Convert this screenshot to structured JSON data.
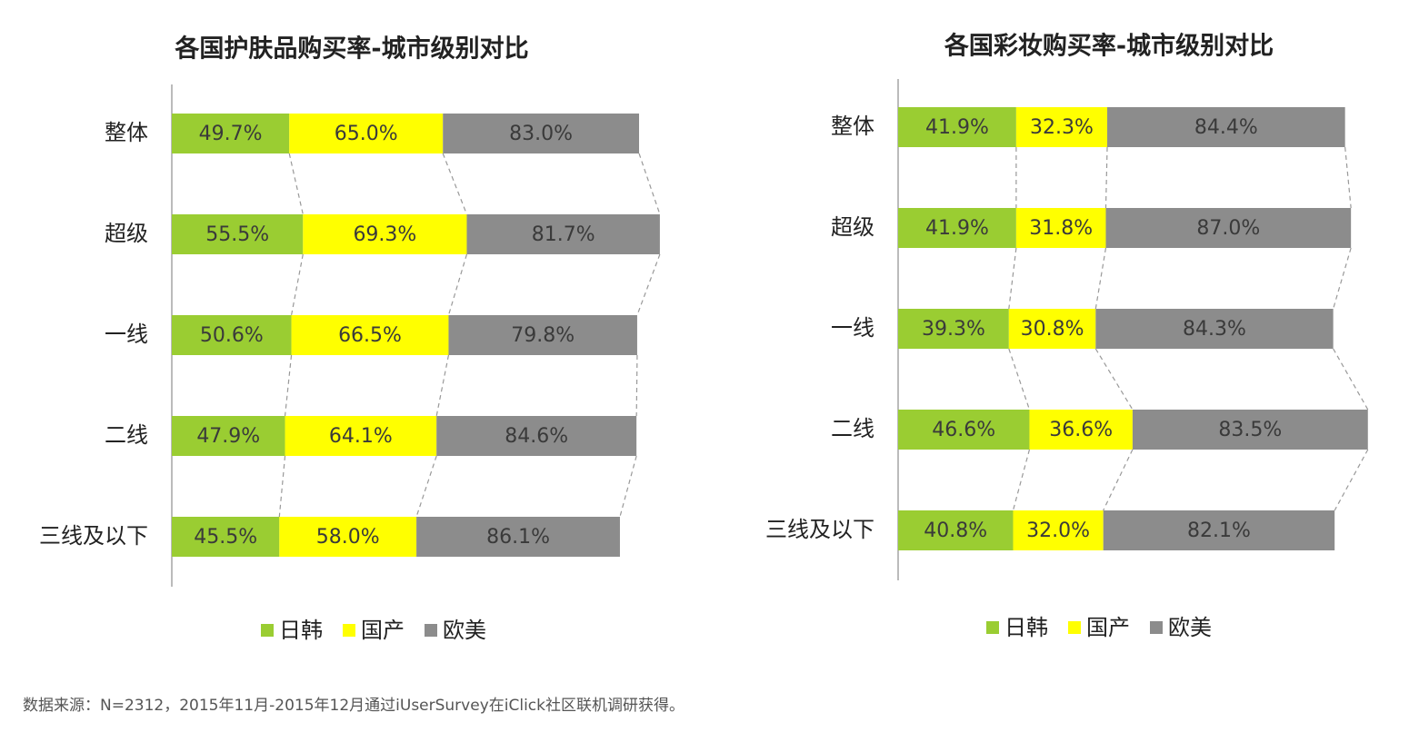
{
  "chart_data": [
    {
      "type": "bar",
      "orientation": "horizontal",
      "stacked": true,
      "title": "各国护肤品购买率-城市级别对比",
      "categories": [
        "整体",
        "超级",
        "一线",
        "二线",
        "三线及以下"
      ],
      "series": [
        {
          "name": "日韩",
          "values": [
            49.7,
            55.5,
            50.6,
            47.9,
            45.5
          ],
          "labels": [
            "49.7%",
            "55.5%",
            "50.6%",
            "47.9%",
            "45.5%"
          ]
        },
        {
          "name": "国产",
          "values": [
            65.0,
            69.3,
            66.5,
            64.1,
            58.0
          ],
          "labels": [
            "65.0%",
            "69.3%",
            "66.5%",
            "64.1%",
            "58.0%"
          ]
        },
        {
          "name": "欧美",
          "values": [
            83.0,
            81.7,
            79.8,
            84.6,
            86.1
          ],
          "labels": [
            "83.0%",
            "81.7%",
            "79.8%",
            "84.6%",
            "86.1%"
          ]
        }
      ],
      "legend": "bottom",
      "xlabel": "",
      "ylabel": ""
    },
    {
      "type": "bar",
      "orientation": "horizontal",
      "stacked": true,
      "title": "各国彩妆购买率-城市级别对比",
      "categories": [
        "整体",
        "超级",
        "一线",
        "二线",
        "三线及以下"
      ],
      "series": [
        {
          "name": "日韩",
          "values": [
            41.9,
            41.9,
            39.3,
            46.6,
            40.8
          ],
          "labels": [
            "41.9%",
            "41.9%",
            "39.3%",
            "46.6%",
            "40.8%"
          ]
        },
        {
          "name": "国产",
          "values": [
            32.3,
            31.8,
            30.8,
            36.6,
            32.0
          ],
          "labels": [
            "32.3%",
            "31.8%",
            "30.8%",
            "36.6%",
            "32.0%"
          ]
        },
        {
          "name": "欧美",
          "values": [
            84.4,
            87.0,
            84.3,
            83.5,
            82.1
          ],
          "labels": [
            "84.4%",
            "87.0%",
            "84.3%",
            "83.5%",
            "82.1%"
          ]
        }
      ],
      "legend": "bottom",
      "xlabel": "",
      "ylabel": ""
    }
  ],
  "colors": {
    "日韩": "#9ACD32",
    "国产": "#FFFF00",
    "欧美": "#8C8C8C",
    "axis": "#BBBBBB",
    "connector": "#999999"
  },
  "footnote": "数据来源：N=2312，2015年11月-2015年12月通过iUserSurvey在iClick社区联机调研获得。"
}
